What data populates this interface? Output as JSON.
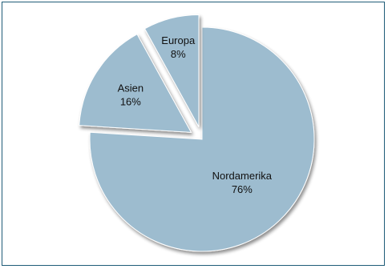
{
  "chart_data": {
    "type": "pie",
    "title": "",
    "categories": [
      "Nordamerika",
      "Asien",
      "Europa"
    ],
    "values": [
      76,
      16,
      8
    ],
    "value_labels": [
      "76%",
      "16%",
      "8%"
    ],
    "exploded": [
      false,
      true,
      true
    ],
    "start_angle_deg": 0,
    "direction": "clockwise",
    "colors": {
      "slice_fill": "#9dbccf",
      "slice_stroke": "#ffffff",
      "frame_border": "#1f5c78",
      "background": "#ffffff"
    },
    "legend": "none"
  }
}
